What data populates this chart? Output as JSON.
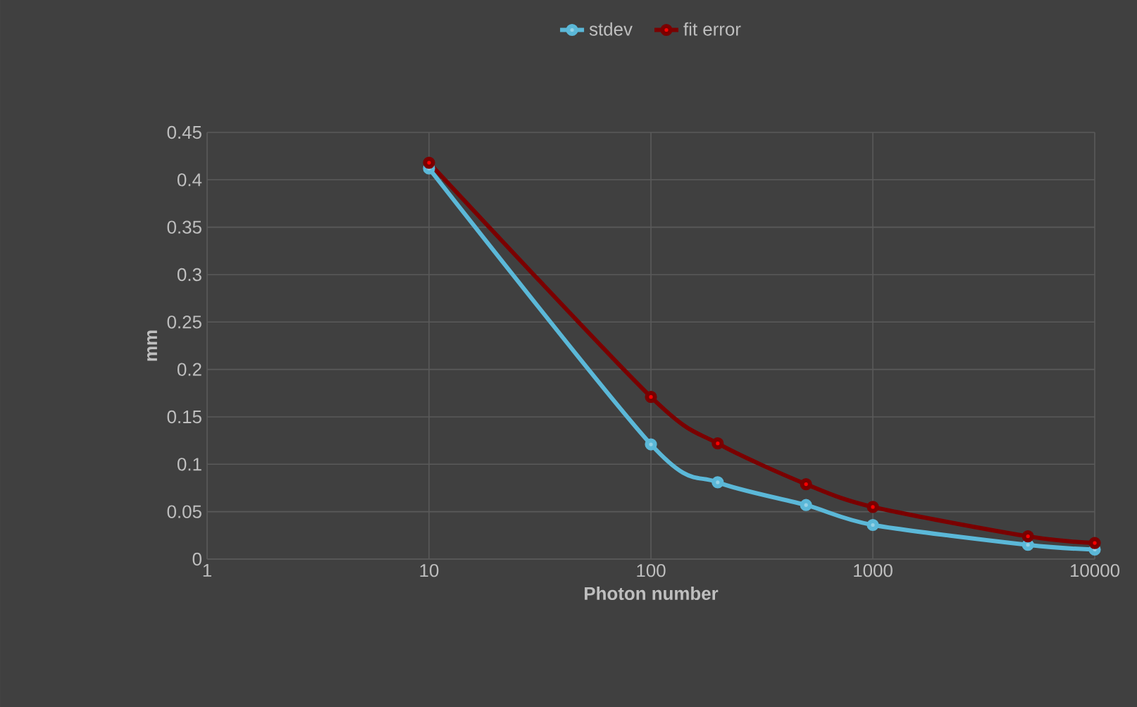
{
  "chart_data": {
    "type": "line",
    "xlabel": "Photon number",
    "ylabel": "mm",
    "x": [
      10,
      100,
      200,
      500,
      1000,
      5000,
      10000
    ],
    "series": [
      {
        "name": "stdev",
        "color": "#5bb8d8",
        "values": [
          0.412,
          0.121,
          0.081,
          0.057,
          0.036,
          0.015,
          0.01
        ]
      },
      {
        "name": "fit error",
        "color": "#7a0000",
        "values": [
          0.418,
          0.171,
          0.122,
          0.079,
          0.055,
          0.024,
          0.017
        ]
      }
    ],
    "log": "x",
    "xlim": [
      1,
      10000
    ],
    "ylim": [
      0,
      0.45
    ],
    "xticks": [
      1,
      10,
      100,
      1000,
      10000
    ],
    "yticks": [
      0,
      0.05,
      0.1,
      0.15,
      0.2,
      0.25,
      0.3,
      0.35,
      0.4,
      0.45
    ],
    "grid": true,
    "legend": "top",
    "marker": "circle",
    "line_style": "solid"
  }
}
